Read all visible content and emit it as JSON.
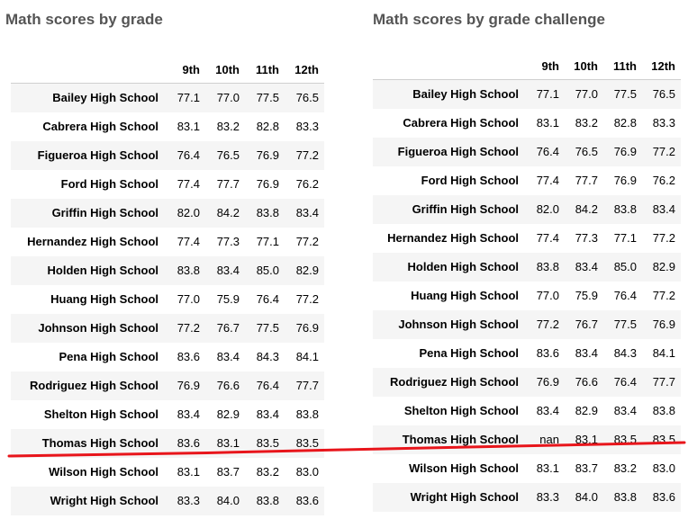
{
  "left": {
    "title": "Math scores by grade",
    "columns": [
      "9th",
      "10th",
      "11th",
      "12th"
    ],
    "rows": [
      {
        "school": "Bailey High School",
        "values": [
          "77.1",
          "77.0",
          "77.5",
          "76.5"
        ]
      },
      {
        "school": "Cabrera High School",
        "values": [
          "83.1",
          "83.2",
          "82.8",
          "83.3"
        ]
      },
      {
        "school": "Figueroa High School",
        "values": [
          "76.4",
          "76.5",
          "76.9",
          "77.2"
        ]
      },
      {
        "school": "Ford High School",
        "values": [
          "77.4",
          "77.7",
          "76.9",
          "76.2"
        ]
      },
      {
        "school": "Griffin High School",
        "values": [
          "82.0",
          "84.2",
          "83.8",
          "83.4"
        ]
      },
      {
        "school": "Hernandez High School",
        "values": [
          "77.4",
          "77.3",
          "77.1",
          "77.2"
        ]
      },
      {
        "school": "Holden High School",
        "values": [
          "83.8",
          "83.4",
          "85.0",
          "82.9"
        ]
      },
      {
        "school": "Huang High School",
        "values": [
          "77.0",
          "75.9",
          "76.4",
          "77.2"
        ]
      },
      {
        "school": "Johnson High School",
        "values": [
          "77.2",
          "76.7",
          "77.5",
          "76.9"
        ]
      },
      {
        "school": "Pena High School",
        "values": [
          "83.6",
          "83.4",
          "84.3",
          "84.1"
        ]
      },
      {
        "school": "Rodriguez High School",
        "values": [
          "76.9",
          "76.6",
          "76.4",
          "77.7"
        ]
      },
      {
        "school": "Shelton High School",
        "values": [
          "83.4",
          "82.9",
          "83.4",
          "83.8"
        ]
      },
      {
        "school": "Thomas High School",
        "values": [
          "83.6",
          "83.1",
          "83.5",
          "83.5"
        ]
      },
      {
        "school": "Wilson High School",
        "values": [
          "83.1",
          "83.7",
          "83.2",
          "83.0"
        ]
      },
      {
        "school": "Wright High School",
        "values": [
          "83.3",
          "84.0",
          "83.8",
          "83.6"
        ]
      }
    ]
  },
  "right": {
    "title": "Math scores by grade challenge",
    "columns": [
      "9th",
      "10th",
      "11th",
      "12th"
    ],
    "rows": [
      {
        "school": "Bailey High School",
        "values": [
          "77.1",
          "77.0",
          "77.5",
          "76.5"
        ]
      },
      {
        "school": "Cabrera High School",
        "values": [
          "83.1",
          "83.2",
          "82.8",
          "83.3"
        ]
      },
      {
        "school": "Figueroa High School",
        "values": [
          "76.4",
          "76.5",
          "76.9",
          "77.2"
        ]
      },
      {
        "school": "Ford High School",
        "values": [
          "77.4",
          "77.7",
          "76.9",
          "76.2"
        ]
      },
      {
        "school": "Griffin High School",
        "values": [
          "82.0",
          "84.2",
          "83.8",
          "83.4"
        ]
      },
      {
        "school": "Hernandez High School",
        "values": [
          "77.4",
          "77.3",
          "77.1",
          "77.2"
        ]
      },
      {
        "school": "Holden High School",
        "values": [
          "83.8",
          "83.4",
          "85.0",
          "82.9"
        ]
      },
      {
        "school": "Huang High School",
        "values": [
          "77.0",
          "75.9",
          "76.4",
          "77.2"
        ]
      },
      {
        "school": "Johnson High School",
        "values": [
          "77.2",
          "76.7",
          "77.5",
          "76.9"
        ]
      },
      {
        "school": "Pena High School",
        "values": [
          "83.6",
          "83.4",
          "84.3",
          "84.1"
        ]
      },
      {
        "school": "Rodriguez High School",
        "values": [
          "76.9",
          "76.6",
          "76.4",
          "77.7"
        ]
      },
      {
        "school": "Shelton High School",
        "values": [
          "83.4",
          "82.9",
          "83.4",
          "83.8"
        ]
      },
      {
        "school": "Thomas High School",
        "values": [
          "nan",
          "83.1",
          "83.5",
          "83.5"
        ]
      },
      {
        "school": "Wilson High School",
        "values": [
          "83.1",
          "83.7",
          "83.2",
          "83.0"
        ]
      },
      {
        "school": "Wright High School",
        "values": [
          "83.3",
          "84.0",
          "83.8",
          "83.6"
        ]
      }
    ]
  },
  "annotation_color": "#e8151b"
}
